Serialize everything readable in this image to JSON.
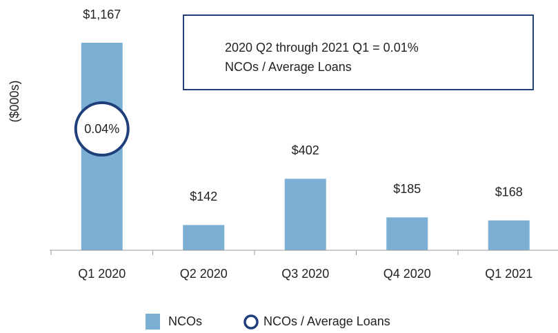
{
  "chart_data": {
    "type": "bar",
    "y_label": "($000s)",
    "categories": [
      "Q1 2020",
      "Q2 2020",
      "Q3 2020",
      "Q4 2020",
      "Q1 2021"
    ],
    "values": [
      1167,
      142,
      402,
      185,
      168
    ],
    "value_labels": [
      "$1,167",
      "$142",
      "$402",
      "$185",
      "$168"
    ],
    "color": "#7bafd4",
    "note_box": [
      "2020 Q2 through 2021 Q1 = 0.01%",
      "NCOs / Average Loans"
    ],
    "bar_annotation": "0.04%",
    "legend": [
      "NCOs",
      "NCOs / Average Loans"
    ],
    "annotation_color": "#1f3f7a"
  }
}
